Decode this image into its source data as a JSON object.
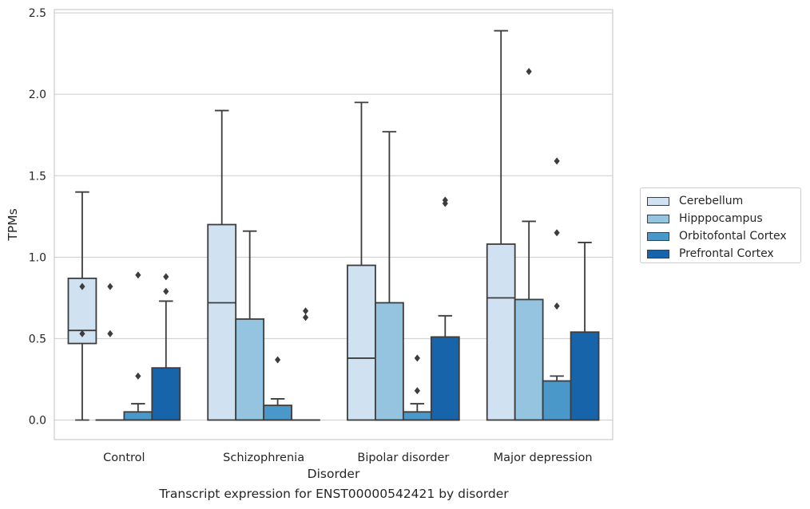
{
  "caption": "Transcript expression for ENST00000542421 by disorder",
  "chart_data": {
    "type": "box",
    "title": "",
    "xlabel": "Disorder",
    "ylabel": "TPMs",
    "ylim": [
      -0.12,
      2.52
    ],
    "yticks": [
      0.0,
      0.5,
      1.0,
      1.5,
      2.0,
      2.5
    ],
    "ytick_labels": [
      "0.0",
      "0.5",
      "1.0",
      "1.5",
      "2.0",
      "2.5"
    ],
    "grid": "horizontal",
    "legend_position": "right",
    "categories": [
      "Control",
      "Schizophrenia",
      "Bipolar disorder",
      "Major depression"
    ],
    "series": [
      {
        "name": "Cerebellum",
        "color": "#d0e1f2",
        "boxes": [
          {
            "whislo": 0.0,
            "q1": 0.47,
            "med": 0.55,
            "q3": 0.87,
            "whishi": 1.4,
            "fliers": [
              0.82,
              0.53
            ]
          },
          {
            "whislo": 0.0,
            "q1": 0.0,
            "med": 0.72,
            "q3": 1.2,
            "whishi": 1.9,
            "fliers": []
          },
          {
            "whislo": 0.0,
            "q1": 0.0,
            "med": 0.38,
            "q3": 0.95,
            "whishi": 1.95,
            "fliers": []
          },
          {
            "whislo": 0.0,
            "q1": 0.0,
            "med": 0.75,
            "q3": 1.08,
            "whishi": 2.39,
            "fliers": []
          }
        ]
      },
      {
        "name": "Hipppocampus",
        "color": "#94c4df",
        "boxes": [
          {
            "whislo": 0.0,
            "q1": 0.0,
            "med": 0.0,
            "q3": 0.0,
            "whishi": 0.0,
            "fliers": [
              0.82,
              0.53
            ]
          },
          {
            "whislo": 0.0,
            "q1": 0.0,
            "med": 0.0,
            "q3": 0.62,
            "whishi": 1.16,
            "fliers": []
          },
          {
            "whislo": 0.0,
            "q1": 0.0,
            "med": 0.0,
            "q3": 0.72,
            "whishi": 1.77,
            "fliers": []
          },
          {
            "whislo": 0.0,
            "q1": 0.0,
            "med": 0.0,
            "q3": 0.74,
            "whishi": 1.22,
            "fliers": [
              2.14
            ]
          }
        ]
      },
      {
        "name": "Orbitofontal Cortex",
        "color": "#4a98c9",
        "boxes": [
          {
            "whislo": 0.0,
            "q1": 0.0,
            "med": 0.0,
            "q3": 0.05,
            "whishi": 0.1,
            "fliers": [
              0.89,
              0.27
            ]
          },
          {
            "whislo": 0.0,
            "q1": 0.0,
            "med": 0.0,
            "q3": 0.09,
            "whishi": 0.13,
            "fliers": [
              0.37
            ]
          },
          {
            "whislo": 0.0,
            "q1": 0.0,
            "med": 0.0,
            "q3": 0.05,
            "whishi": 0.1,
            "fliers": [
              0.38,
              0.18
            ]
          },
          {
            "whislo": 0.0,
            "q1": 0.0,
            "med": 0.0,
            "q3": 0.24,
            "whishi": 0.27,
            "fliers": [
              1.59,
              1.15,
              0.7
            ]
          }
        ]
      },
      {
        "name": "Prefrontal Cortex",
        "color": "#1764ab",
        "boxes": [
          {
            "whislo": 0.0,
            "q1": 0.0,
            "med": 0.0,
            "q3": 0.32,
            "whishi": 0.73,
            "fliers": [
              0.88,
              0.79
            ]
          },
          {
            "whislo": 0.0,
            "q1": 0.0,
            "med": 0.0,
            "q3": 0.0,
            "whishi": 0.0,
            "fliers": [
              0.67,
              0.63
            ]
          },
          {
            "whislo": 0.0,
            "q1": 0.0,
            "med": 0.0,
            "q3": 0.51,
            "whishi": 0.64,
            "fliers": [
              1.35,
              1.33
            ]
          },
          {
            "whislo": 0.0,
            "q1": 0.0,
            "med": 0.0,
            "q3": 0.54,
            "whishi": 1.09,
            "fliers": []
          }
        ]
      }
    ]
  }
}
